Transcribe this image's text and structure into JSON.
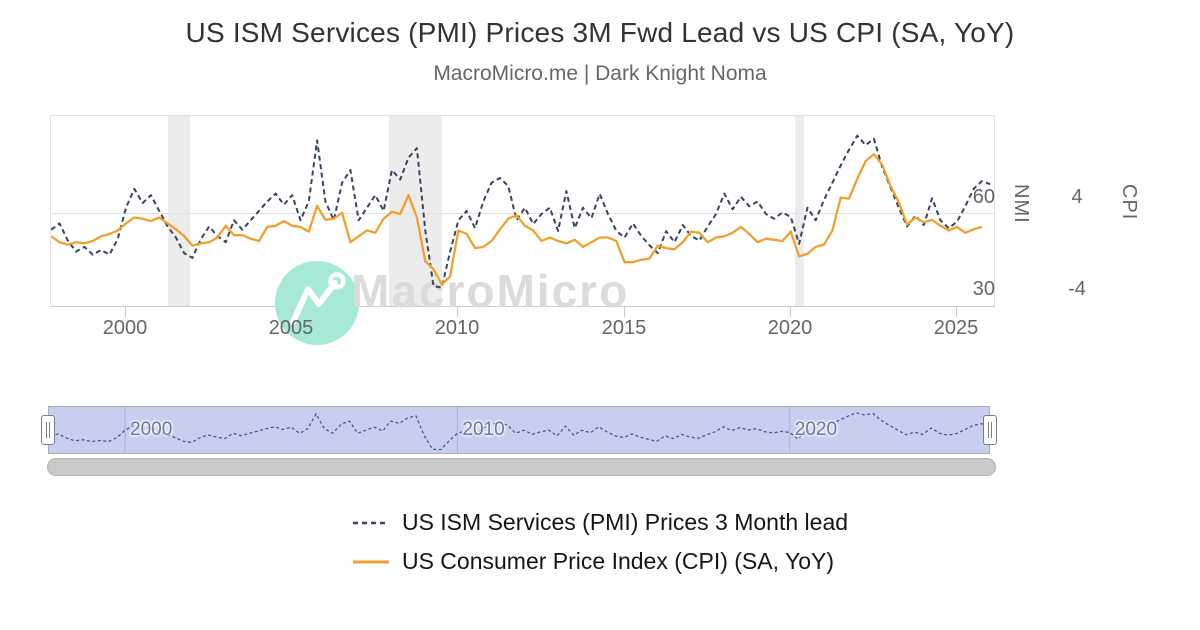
{
  "watermark": {
    "text": "MacroMicro",
    "circle_color": "#a5e9d6",
    "text_color": "#dbdbdb"
  },
  "scrollbar": {
    "color": "#c9c9c9"
  },
  "chart_data": {
    "type": "line",
    "title": "US ISM Services (PMI) Prices 3M Fwd Lead vs US CPI (SA, YoY)",
    "subtitle": "MacroMicro.me | Dark Knight Noma",
    "x_unit": "year",
    "x_range": [
      1997.7,
      2026.2
    ],
    "x_ticks": [
      2000,
      2005,
      2010,
      2015,
      2020,
      2025
    ],
    "grid": {
      "horizontal_gridline_at_nmi": 60,
      "plot_border": true
    },
    "legend_position": "bottom",
    "axes": {
      "nmi": {
        "label": "NMI",
        "side": "right",
        "ticks": [
          60,
          30
        ],
        "range": [
          30,
          91
        ]
      },
      "cpi": {
        "label": "CPI",
        "side": "right",
        "ticks": [
          4,
          -4
        ],
        "range": [
          -4,
          12.3
        ]
      }
    },
    "recession_bands": [
      [
        2001.25,
        2001.92
      ],
      [
        2007.92,
        2009.5
      ],
      [
        2020.12,
        2020.4
      ]
    ],
    "series": [
      {
        "name": "US ISM Services (PMI) Prices 3 Month lead",
        "axis": "nmi",
        "color": "#39445c",
        "dash": "5 3.5",
        "x_start": 1997.75,
        "x_step": 0.25,
        "values": [
          55,
          57,
          51.5,
          48,
          49.5,
          47,
          48.5,
          47,
          52,
          62,
          68,
          63.5,
          66,
          61,
          56,
          52.5,
          47.5,
          46,
          52,
          56,
          53,
          51,
          58,
          55,
          58,
          61,
          64,
          66.5,
          63,
          66,
          58,
          64,
          83.5,
          64,
          58,
          70,
          74,
          58,
          62,
          66,
          61,
          74,
          71,
          78,
          81,
          55,
          37,
          36.5,
          48,
          58,
          61,
          55.5,
          64,
          70,
          71.5,
          68.9,
          58,
          62,
          56.8,
          60,
          62,
          54.6,
          67.3,
          55.5,
          62,
          58.7,
          66.4,
          60,
          54.6,
          52.5,
          57,
          53,
          50,
          47.5,
          54.5,
          51,
          56.5,
          53,
          51.5,
          56,
          60,
          66.5,
          61.5,
          65.5,
          62.5,
          64,
          60,
          58.5,
          60.5,
          59,
          50.5,
          62,
          58,
          64.5,
          70,
          75.5,
          80.5,
          85,
          82,
          84,
          75,
          68.5,
          62,
          56,
          59.5,
          56.5,
          65,
          58,
          55.5,
          57.5,
          62.5,
          68,
          70.5,
          69.5
        ]
      },
      {
        "name": "US Consumer Price Index (CPI) (SA, YoY)",
        "axis": "cpi",
        "color": "#f2a02d",
        "dash": null,
        "x_start": 1997.75,
        "x_step": 0.25,
        "values": [
          2.1,
          1.6,
          1.4,
          1.6,
          1.5,
          1.7,
          2.1,
          2.3,
          2.6,
          3.2,
          3.7,
          3.6,
          3.4,
          3.7,
          3.2,
          2.7,
          2.1,
          1.3,
          1.5,
          1.6,
          2.0,
          3.0,
          2.2,
          2.2,
          1.9,
          1.7,
          2.9,
          3.0,
          3.4,
          3.0,
          2.9,
          2.5,
          4.7,
          3.5,
          3.6,
          4.1,
          1.6,
          2.1,
          2.6,
          2.4,
          3.6,
          4.2,
          4.0,
          5.6,
          3.7,
          0.0,
          -0.7,
          -2.0,
          -1.3,
          2.6,
          2.3,
          1.1,
          1.2,
          1.7,
          2.7,
          3.6,
          3.9,
          3.0,
          2.6,
          1.7,
          2.0,
          1.7,
          1.5,
          1.8,
          1.2,
          1.6,
          2.0,
          2.0,
          1.7,
          -0.1,
          -0.1,
          0.1,
          0.2,
          1.3,
          1.1,
          1.0,
          1.6,
          2.5,
          2.4,
          1.6,
          2.0,
          2.1,
          2.4,
          2.9,
          2.3,
          1.6,
          1.9,
          1.8,
          1.7,
          2.5,
          0.4,
          0.6,
          1.2,
          1.4,
          2.6,
          5.4,
          5.3,
          7.0,
          8.5,
          9.1,
          8.2,
          6.4,
          5.0,
          3.1,
          3.7,
          3.3,
          3.5,
          3.0,
          2.6,
          2.9,
          2.4,
          2.7,
          2.9
        ]
      }
    ],
    "navigator": {
      "x_ticks": [
        2000,
        2010,
        2020
      ],
      "series_source": 0,
      "line_color": "#4a5886",
      "fill_color": "#c7cff1"
    }
  }
}
